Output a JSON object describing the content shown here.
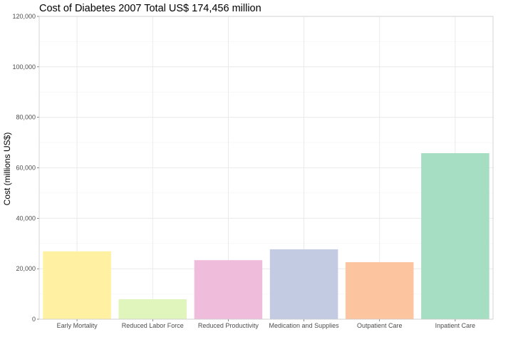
{
  "chart_data": {
    "type": "bar",
    "title": "Cost of Diabetes 2007 Total US$ 174,456 million",
    "xlabel": "",
    "ylabel": "Cost (millions US$)",
    "categories": [
      "Early Mortality",
      "Reduced Labor Force",
      "Reduced Productivity",
      "Medication and Supplies",
      "Outpatient Care",
      "Inpatient Care"
    ],
    "values": [
      26900,
      7900,
      23400,
      27700,
      22600,
      65800
    ],
    "colors": [
      "#fff1a1",
      "#dff5bc",
      "#efbcdc",
      "#c2cbe2",
      "#fcc49f",
      "#a5dec3"
    ],
    "ylim": [
      0,
      120000
    ],
    "yticks": [
      0,
      20000,
      40000,
      60000,
      80000,
      100000,
      120000
    ],
    "ytick_labels": [
      "0",
      "20,000",
      "40,000",
      "60,000",
      "80,000",
      "100,000",
      "120,000"
    ],
    "grid": true,
    "legend": "none"
  }
}
